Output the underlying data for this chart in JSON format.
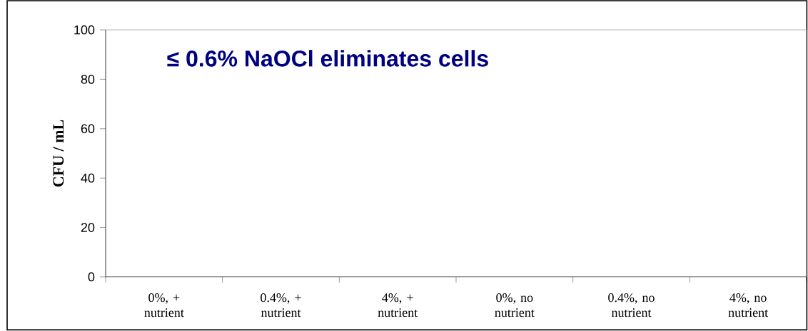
{
  "chart_data": {
    "type": "bar",
    "ylabel": "CFU / mL",
    "categories": [
      "0%, + nutrient",
      "0.4%, + nutrient",
      "4%, + nutrient",
      "0%, no nutrient",
      "0.4%, no nutrient",
      "4%, no nutrient"
    ],
    "values": [
      0,
      0,
      0,
      0,
      0,
      0
    ],
    "ylim": [
      0,
      100
    ],
    "yticks": [
      0,
      20,
      40,
      60,
      80,
      100
    ],
    "annotations": [
      "≤ 0.6% NaOCl eliminates cells"
    ]
  }
}
